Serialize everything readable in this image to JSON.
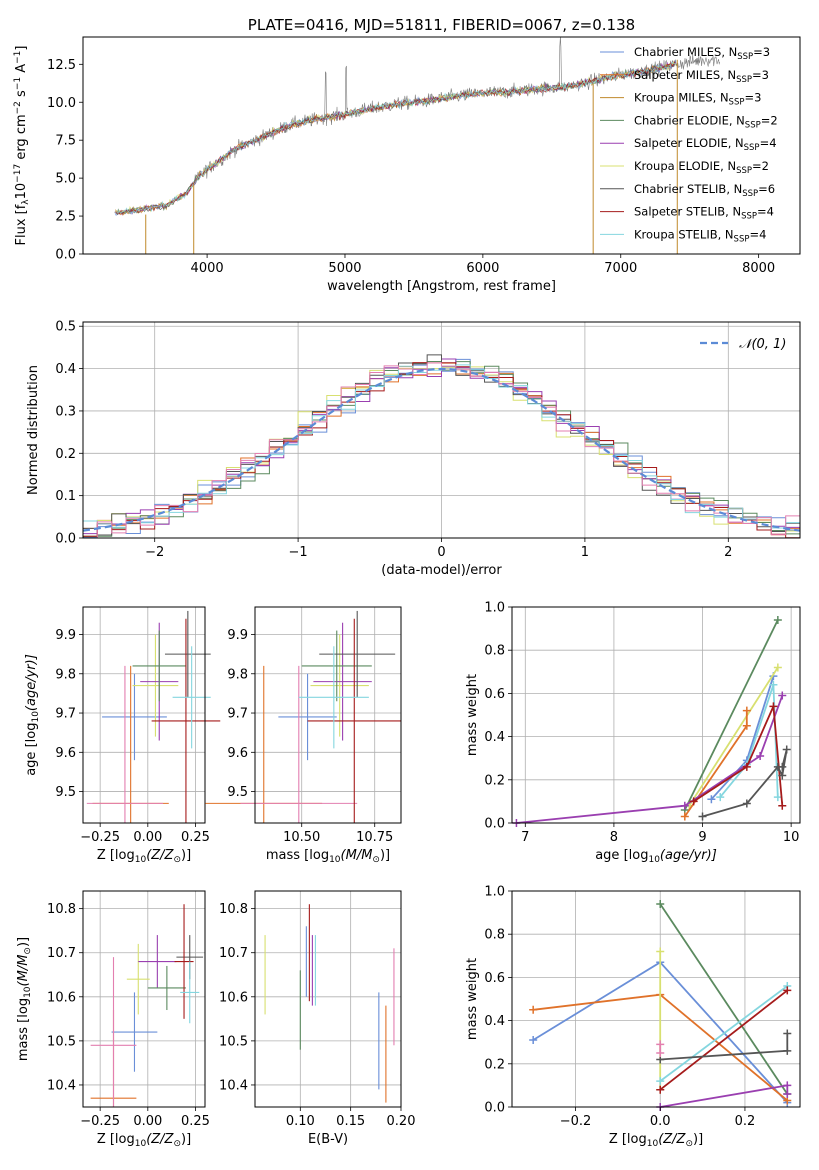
{
  "colors": {
    "chabrier_miles": "#6a8fd8",
    "salpeter_miles": "#e0722a",
    "kroupa_miles": "#c08a2c",
    "chabrier_elodie": "#5b8a5f",
    "salpeter_elodie": "#9a3fb0",
    "kroupa_elodie": "#d8e070",
    "chabrier_stelib": "#555555",
    "salpeter_stelib": "#a51b1b",
    "kroupa_stelib": "#84d6df",
    "pink": "#e37fb0",
    "data_gray": "#7a7a7a",
    "normal_curve": "#5b8bd6"
  },
  "chart_data": [
    {
      "id": "spectrum",
      "type": "line",
      "title": "PLATE=0416, MJD=51811, FIBERID=0067, z=0.138",
      "xlabel": "wavelength [Angstrom, rest frame]",
      "ylabel": "Flux [f",
      "ylabel_sub": "λ",
      "ylabel_rest": "10",
      "ylabel_exp1": "−17",
      "ylabel_mid": " erg cm",
      "ylabel_exp2": "−2",
      "ylabel_s": " s",
      "ylabel_exp3": "−1",
      "ylabel_a": " A",
      "ylabel_exp4": "−1",
      "ylabel_end": "]",
      "xlim": [
        3100,
        8300
      ],
      "ylim": [
        0,
        14.3
      ],
      "xticks": [
        "4000",
        "5000",
        "6000",
        "7000",
        "8000"
      ],
      "yticks": [
        "0.0",
        "2.5",
        "5.0",
        "7.5",
        "10.0",
        "12.5"
      ],
      "continuum": {
        "x": [
          3330,
          3500,
          3700,
          3850,
          3950,
          4050,
          4200,
          4400,
          4600,
          4800,
          5000,
          5200,
          5400,
          5600,
          5800,
          6000,
          6200,
          6400,
          6600,
          6800,
          7000,
          7200,
          7400,
          7600
        ],
        "y": [
          2.7,
          2.9,
          3.2,
          4.0,
          5.2,
          5.9,
          6.9,
          7.7,
          8.5,
          8.9,
          9.2,
          9.6,
          9.9,
          10.1,
          10.4,
          10.6,
          10.7,
          10.9,
          11.0,
          11.4,
          11.8,
          12.1,
          12.5,
          12.8
        ]
      },
      "legend": [
        {
          "name": "Chabrier MILES, N",
          "sub": "SSP",
          "tail": "=3",
          "color_key": "chabrier_miles"
        },
        {
          "name": "Salpeter MILES, N",
          "sub": "SSP",
          "tail": "=3",
          "color_key": "salpeter_miles"
        },
        {
          "name": "Kroupa MILES, N",
          "sub": "SSP",
          "tail": "=3",
          "color_key": "kroupa_miles"
        },
        {
          "name": "Chabrier ELODIE, N",
          "sub": "SSP",
          "tail": "=2",
          "color_key": "chabrier_elodie"
        },
        {
          "name": "Salpeter ELODIE, N",
          "sub": "SSP",
          "tail": "=4",
          "color_key": "salpeter_elodie"
        },
        {
          "name": "Kroupa ELODIE, N",
          "sub": "SSP",
          "tail": "=2",
          "color_key": "kroupa_elodie"
        },
        {
          "name": "Chabrier STELIB, N",
          "sub": "SSP",
          "tail": "=6",
          "color_key": "chabrier_stelib"
        },
        {
          "name": "Salpeter STELIB, N",
          "sub": "SSP",
          "tail": "=4",
          "color_key": "salpeter_stelib"
        },
        {
          "name": "Kroupa STELIB, N",
          "sub": "SSP",
          "tail": "=4",
          "color_key": "kroupa_stelib"
        }
      ]
    },
    {
      "id": "residuals",
      "type": "step",
      "xlabel": "(data-model)/error",
      "ylabel": "Normed distribution",
      "xlim": [
        -2.5,
        2.5
      ],
      "ylim": [
        0,
        0.51
      ],
      "xticks": [
        {
          "v": -2,
          "t": "−2"
        },
        {
          "v": -1,
          "t": "−1"
        },
        {
          "v": 0,
          "t": "0"
        },
        {
          "v": 1,
          "t": "1"
        },
        {
          "v": 2,
          "t": "2"
        }
      ],
      "yticks": [
        {
          "v": 0,
          "t": "0.0"
        },
        {
          "v": 0.1,
          "t": "0.1"
        },
        {
          "v": 0.2,
          "t": "0.2"
        },
        {
          "v": 0.3,
          "t": "0.3"
        },
        {
          "v": 0.4,
          "t": "0.4"
        },
        {
          "v": 0.5,
          "t": "0.5"
        }
      ],
      "bin_width": 0.1,
      "legend": [
        {
          "name": "𝒩(0, 1)",
          "color_key": "normal_curve",
          "style": "dashed"
        }
      ]
    },
    {
      "id": "age_vs_Z",
      "type": "errorbar",
      "xlabel": "Z [log",
      "xlabel_sub": "10",
      "xlabel_tail": "(Z/Z",
      "xlabel_sub2": "⊙",
      "xlabel_end": ")]",
      "ylabel": "age  [log",
      "ylabel_sub": "10",
      "ylabel_tail": "(age/yr)]",
      "xlim": [
        -0.34,
        0.3
      ],
      "ylim": [
        9.42,
        9.97
      ],
      "xticks": [
        {
          "v": -0.25,
          "t": "−0.25"
        },
        {
          "v": 0,
          "t": "0.00"
        },
        {
          "v": 0.25,
          "t": "0.25"
        }
      ],
      "yticks": [
        {
          "v": 9.5,
          "t": "9.5"
        },
        {
          "v": 9.6,
          "t": "9.6"
        },
        {
          "v": 9.7,
          "t": "9.7"
        },
        {
          "v": 9.8,
          "t": "9.8"
        },
        {
          "v": 9.9,
          "t": "9.9"
        }
      ],
      "points": [
        {
          "x": -0.07,
          "xerr": 0.17,
          "y": 9.69,
          "yerr": 0.11,
          "color_key": "chabrier_miles"
        },
        {
          "x": -0.09,
          "xerr": 0.2,
          "y": 9.47,
          "yerr": 0.35,
          "color_key": "salpeter_miles"
        },
        {
          "x": -0.12,
          "xerr": 0.2,
          "y": 9.47,
          "yerr": 0.35,
          "color_key": "pink"
        },
        {
          "x": 0.04,
          "xerr": 0.12,
          "y": 9.77,
          "yerr": 0.13,
          "color_key": "kroupa_elodie"
        },
        {
          "x": 0.06,
          "xerr": 0.1,
          "y": 9.78,
          "yerr": 0.15,
          "color_key": "salpeter_elodie"
        },
        {
          "x": 0.06,
          "xerr": 0.14,
          "y": 9.82,
          "yerr": 0.09,
          "color_key": "chabrier_elodie"
        },
        {
          "x": 0.21,
          "xerr": 0.12,
          "y": 9.85,
          "yerr": 0.11,
          "color_key": "chabrier_stelib"
        },
        {
          "x": 0.2,
          "xerr": 0.18,
          "y": 9.68,
          "yerr": 0.26,
          "color_key": "salpeter_stelib"
        },
        {
          "x": 0.23,
          "xerr": 0.1,
          "y": 9.74,
          "yerr": 0.13,
          "color_key": "kroupa_stelib"
        }
      ]
    },
    {
      "id": "age_vs_mass",
      "type": "errorbar",
      "xlabel": "mass [log",
      "xlabel_sub": "10",
      "xlabel_tail": "(M/M",
      "xlabel_sub2": "⊙",
      "xlabel_end": ")]",
      "xlim": [
        10.34,
        10.84
      ],
      "ylim": [
        9.42,
        9.97
      ],
      "xticks": [
        {
          "v": 10.5,
          "t": "10.50"
        },
        {
          "v": 10.75,
          "t": "10.75"
        }
      ],
      "yticks": [
        {
          "v": 9.5,
          "t": "9.5"
        },
        {
          "v": 9.6,
          "t": "9.6"
        },
        {
          "v": 9.7,
          "t": "9.7"
        },
        {
          "v": 9.8,
          "t": "9.8"
        },
        {
          "v": 9.9,
          "t": "9.9"
        }
      ],
      "points": [
        {
          "x": 10.52,
          "xerr": 0.1,
          "y": 9.69,
          "yerr": 0.11,
          "color_key": "chabrier_miles"
        },
        {
          "x": 10.37,
          "xerr": 0.2,
          "y": 9.47,
          "yerr": 0.35,
          "color_key": "salpeter_miles"
        },
        {
          "x": 10.49,
          "xerr": 0.2,
          "y": 9.47,
          "yerr": 0.35,
          "color_key": "pink"
        },
        {
          "x": 10.63,
          "xerr": 0.1,
          "y": 9.77,
          "yerr": 0.13,
          "color_key": "kroupa_elodie"
        },
        {
          "x": 10.64,
          "xerr": 0.1,
          "y": 9.78,
          "yerr": 0.15,
          "color_key": "salpeter_elodie"
        },
        {
          "x": 10.62,
          "xerr": 0.12,
          "y": 9.82,
          "yerr": 0.09,
          "color_key": "chabrier_elodie"
        },
        {
          "x": 10.69,
          "xerr": 0.13,
          "y": 9.85,
          "yerr": 0.11,
          "color_key": "chabrier_stelib"
        },
        {
          "x": 10.68,
          "xerr": 0.16,
          "y": 9.68,
          "yerr": 0.26,
          "color_key": "salpeter_stelib"
        },
        {
          "x": 10.61,
          "xerr": 0.12,
          "y": 9.74,
          "yerr": 0.13,
          "color_key": "kroupa_stelib"
        }
      ]
    },
    {
      "id": "weight_vs_age",
      "type": "line",
      "xlabel": "age  [log",
      "xlabel_sub": "10",
      "xlabel_tail": "(age/yr)]",
      "ylabel": "mass weight",
      "xlim": [
        6.85,
        10.1
      ],
      "ylim": [
        0,
        1.0
      ],
      "xticks": [
        {
          "v": 7,
          "t": "7"
        },
        {
          "v": 8,
          "t": "8"
        },
        {
          "v": 9,
          "t": "9"
        },
        {
          "v": 10,
          "t": "10"
        }
      ],
      "yticks": [
        {
          "v": 0,
          "t": "0.0"
        },
        {
          "v": 0.2,
          "t": "0.2"
        },
        {
          "v": 0.4,
          "t": "0.4"
        },
        {
          "v": 0.6,
          "t": "0.6"
        },
        {
          "v": 0.8,
          "t": "0.8"
        },
        {
          "v": 1.0,
          "t": "1.0"
        }
      ],
      "series": [
        {
          "color_key": "chabrier_elodie",
          "x": [
            8.8,
            9.85
          ],
          "y": [
            0.06,
            0.94
          ]
        },
        {
          "color_key": "chabrier_miles",
          "x": [
            9.1,
            9.5,
            9.8
          ],
          "y": [
            0.11,
            0.29,
            0.68
          ]
        },
        {
          "color_key": "kroupa_elodie",
          "x": [
            8.85,
            9.85
          ],
          "y": [
            0.08,
            0.72
          ]
        },
        {
          "color_key": "kroupa_stelib",
          "x": [
            9.2,
            9.5,
            9.8,
            9.85
          ],
          "y": [
            0.12,
            0.27,
            0.64,
            0.12
          ]
        },
        {
          "color_key": "salpeter_miles",
          "x": [
            8.8,
            9.5,
            9.5
          ],
          "y": [
            0.03,
            0.45,
            0.52
          ]
        },
        {
          "color_key": "salpeter_elodie",
          "x": [
            6.9,
            8.8,
            9.65,
            9.9
          ],
          "y": [
            0.0,
            0.08,
            0.31,
            0.59
          ]
        },
        {
          "color_key": "salpeter_stelib",
          "x": [
            8.9,
            9.5,
            9.8,
            9.9
          ],
          "y": [
            0.1,
            0.26,
            0.54,
            0.08
          ]
        },
        {
          "color_key": "chabrier_stelib",
          "x": [
            9.0,
            9.5,
            9.85,
            9.9,
            9.95,
            9.9
          ],
          "y": [
            0.03,
            0.09,
            0.26,
            0.22,
            0.34,
            0.26
          ]
        }
      ]
    },
    {
      "id": "mass_vs_Z",
      "type": "errorbar",
      "xlabel": "Z [log",
      "xlabel_sub": "10",
      "xlabel_tail": "(Z/Z",
      "xlabel_sub2": "⊙",
      "xlabel_end": ")]",
      "ylabel": "mass [log",
      "ylabel_sub": "10",
      "ylabel_tail": "(M/M",
      "ylabel_sub2": "⊙",
      "ylabel_end": ")]",
      "xlim": [
        -0.34,
        0.3
      ],
      "ylim": [
        10.35,
        10.84
      ],
      "xticks": [
        {
          "v": -0.25,
          "t": "−0.25"
        },
        {
          "v": 0,
          "t": "0.00"
        },
        {
          "v": 0.25,
          "t": "0.25"
        }
      ],
      "yticks": [
        {
          "v": 10.4,
          "t": "10.4"
        },
        {
          "v": 10.5,
          "t": "10.5"
        },
        {
          "v": 10.6,
          "t": "10.6"
        },
        {
          "v": 10.7,
          "t": "10.7"
        },
        {
          "v": 10.8,
          "t": "10.8"
        }
      ],
      "points": [
        {
          "x": -0.07,
          "xerr": 0.12,
          "y": 10.52,
          "yerr": 0.09,
          "color_key": "chabrier_miles"
        },
        {
          "x": -0.18,
          "xerr": 0.12,
          "y": 10.37,
          "yerr": 0.2,
          "color_key": "salpeter_miles"
        },
        {
          "x": -0.18,
          "xerr": 0.12,
          "y": 10.49,
          "yerr": 0.2,
          "color_key": "pink"
        },
        {
          "x": -0.05,
          "xerr": 0.06,
          "y": 10.64,
          "yerr": 0.08,
          "color_key": "kroupa_elodie"
        },
        {
          "x": 0.05,
          "xerr": 0.1,
          "y": 10.68,
          "yerr": 0.06,
          "color_key": "salpeter_elodie"
        },
        {
          "x": 0.1,
          "xerr": 0.1,
          "y": 10.62,
          "yerr": 0.05,
          "color_key": "chabrier_elodie"
        },
        {
          "x": 0.22,
          "xerr": 0.07,
          "y": 10.69,
          "yerr": 0.05,
          "color_key": "chabrier_stelib"
        },
        {
          "x": 0.19,
          "xerr": 0.05,
          "y": 10.68,
          "yerr": 0.13,
          "color_key": "salpeter_stelib"
        },
        {
          "x": 0.22,
          "xerr": 0.05,
          "y": 10.61,
          "yerr": 0.07,
          "color_key": "kroupa_stelib"
        }
      ]
    },
    {
      "id": "mass_vs_ebv",
      "type": "errorbar",
      "xlabel": "E(B-V)",
      "xlim": [
        0.055,
        0.2
      ],
      "ylim": [
        10.35,
        10.84
      ],
      "xticks": [
        {
          "v": 0.1,
          "t": "0.10"
        },
        {
          "v": 0.15,
          "t": "0.15"
        },
        {
          "v": 0.2,
          "t": "0.20"
        }
      ],
      "yticks": [
        {
          "v": 10.4,
          "t": "10.4"
        },
        {
          "v": 10.5,
          "t": "10.5"
        },
        {
          "v": 10.6,
          "t": "10.6"
        },
        {
          "v": 10.7,
          "t": "10.7"
        },
        {
          "v": 10.8,
          "t": "10.8"
        }
      ],
      "points": [
        {
          "x": 0.065,
          "xerr": 0,
          "y": 10.65,
          "yerr": 0.09,
          "color_key": "kroupa_elodie"
        },
        {
          "x": 0.1,
          "xerr": 0,
          "y": 10.57,
          "yerr": 0.09,
          "color_key": "chabrier_elodie"
        },
        {
          "x": 0.106,
          "xerr": 0,
          "y": 10.68,
          "yerr": 0.08,
          "color_key": "chabrier_miles"
        },
        {
          "x": 0.109,
          "xerr": 0,
          "y": 10.7,
          "yerr": 0.11,
          "color_key": "salpeter_stelib"
        },
        {
          "x": 0.112,
          "xerr": 0,
          "y": 10.66,
          "yerr": 0.08,
          "color_key": "salpeter_elodie"
        },
        {
          "x": 0.115,
          "xerr": 0,
          "y": 10.66,
          "yerr": 0.08,
          "color_key": "kroupa_stelib"
        },
        {
          "x": 0.178,
          "xerr": 0,
          "y": 10.5,
          "yerr": 0.11,
          "color_key": "chabrier_miles"
        },
        {
          "x": 0.185,
          "xerr": 0,
          "y": 10.47,
          "yerr": 0.11,
          "color_key": "salpeter_miles"
        },
        {
          "x": 0.193,
          "xerr": 0,
          "y": 10.6,
          "yerr": 0.11,
          "color_key": "pink"
        }
      ]
    },
    {
      "id": "weight_vs_Z",
      "type": "line",
      "xlabel": "Z [log",
      "xlabel_sub": "10",
      "xlabel_tail": "(Z/Z",
      "xlabel_sub2": "⊙",
      "xlabel_end": ")]",
      "ylabel": "mass weight",
      "xlim": [
        -0.35,
        0.33
      ],
      "ylim": [
        0,
        1.0
      ],
      "xticks": [
        {
          "v": -0.2,
          "t": "−0.2"
        },
        {
          "v": 0,
          "t": "0.0"
        },
        {
          "v": 0.2,
          "t": "0.2"
        }
      ],
      "yticks": [
        {
          "v": 0,
          "t": "0.0"
        },
        {
          "v": 0.2,
          "t": "0.2"
        },
        {
          "v": 0.4,
          "t": "0.4"
        },
        {
          "v": 0.6,
          "t": "0.6"
        },
        {
          "v": 0.8,
          "t": "0.8"
        },
        {
          "v": 1.0,
          "t": "1.0"
        }
      ],
      "series": [
        {
          "color_key": "chabrier_miles",
          "x": [
            -0.3,
            0.0,
            0.3
          ],
          "y": [
            0.31,
            0.67,
            0.02
          ]
        },
        {
          "color_key": "salpeter_miles",
          "x": [
            -0.3,
            0.0,
            0.3
          ],
          "y": [
            0.45,
            0.52,
            0.03
          ]
        },
        {
          "color_key": "chabrier_elodie",
          "x": [
            0.0,
            0.3
          ],
          "y": [
            0.94,
            0.06
          ]
        },
        {
          "color_key": "kroupa_elodie",
          "x": [
            0.0,
            0.0
          ],
          "y": [
            0.72,
            0.08
          ]
        },
        {
          "color_key": "salpeter_elodie",
          "x": [
            0.0,
            0.3,
            0.3
          ],
          "y": [
            0.0,
            0.1,
            0.06
          ]
        },
        {
          "color_key": "kroupa_stelib",
          "x": [
            0.0,
            0.3
          ],
          "y": [
            0.12,
            0.56
          ]
        },
        {
          "color_key": "salpeter_stelib",
          "x": [
            0.0,
            0.3
          ],
          "y": [
            0.08,
            0.54
          ]
        },
        {
          "color_key": "chabrier_stelib",
          "x": [
            0.0,
            0.3,
            0.3
          ],
          "y": [
            0.22,
            0.26,
            0.34
          ]
        },
        {
          "color_key": "pink",
          "x": [
            0.0,
            0.0
          ],
          "y": [
            0.25,
            0.29
          ]
        }
      ]
    }
  ]
}
